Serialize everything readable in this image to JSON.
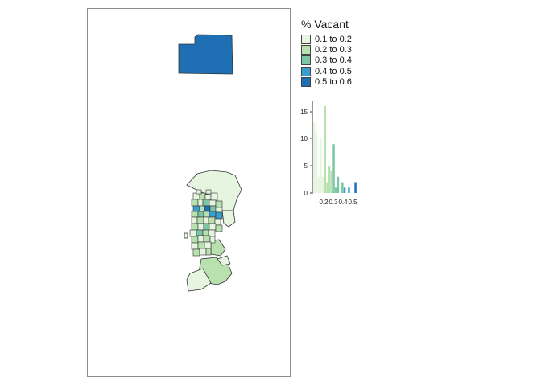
{
  "legend": {
    "title": "% Vacant",
    "classes": [
      {
        "label": "0.1 to 0.2",
        "color": "#e5f5e0"
      },
      {
        "label": "0.2 to 0.3",
        "color": "#b9e1b0"
      },
      {
        "label": "0.3 to 0.4",
        "color": "#7bc6a4"
      },
      {
        "label": "0.4 to 0.5",
        "color": "#3a9fcf"
      },
      {
        "label": "0.5 to 0.6",
        "color": "#1f6fb4"
      }
    ]
  },
  "histogram": {
    "y_ticks": [
      "0",
      "5",
      "10",
      "15"
    ],
    "x_tick_labels": [
      "0.2",
      "0.3",
      "0.4",
      "0.5"
    ],
    "ylim": [
      0,
      17
    ]
  },
  "colors": {
    "frame_border": "#8c8c8c",
    "polygon_stroke": "#333333"
  }
}
